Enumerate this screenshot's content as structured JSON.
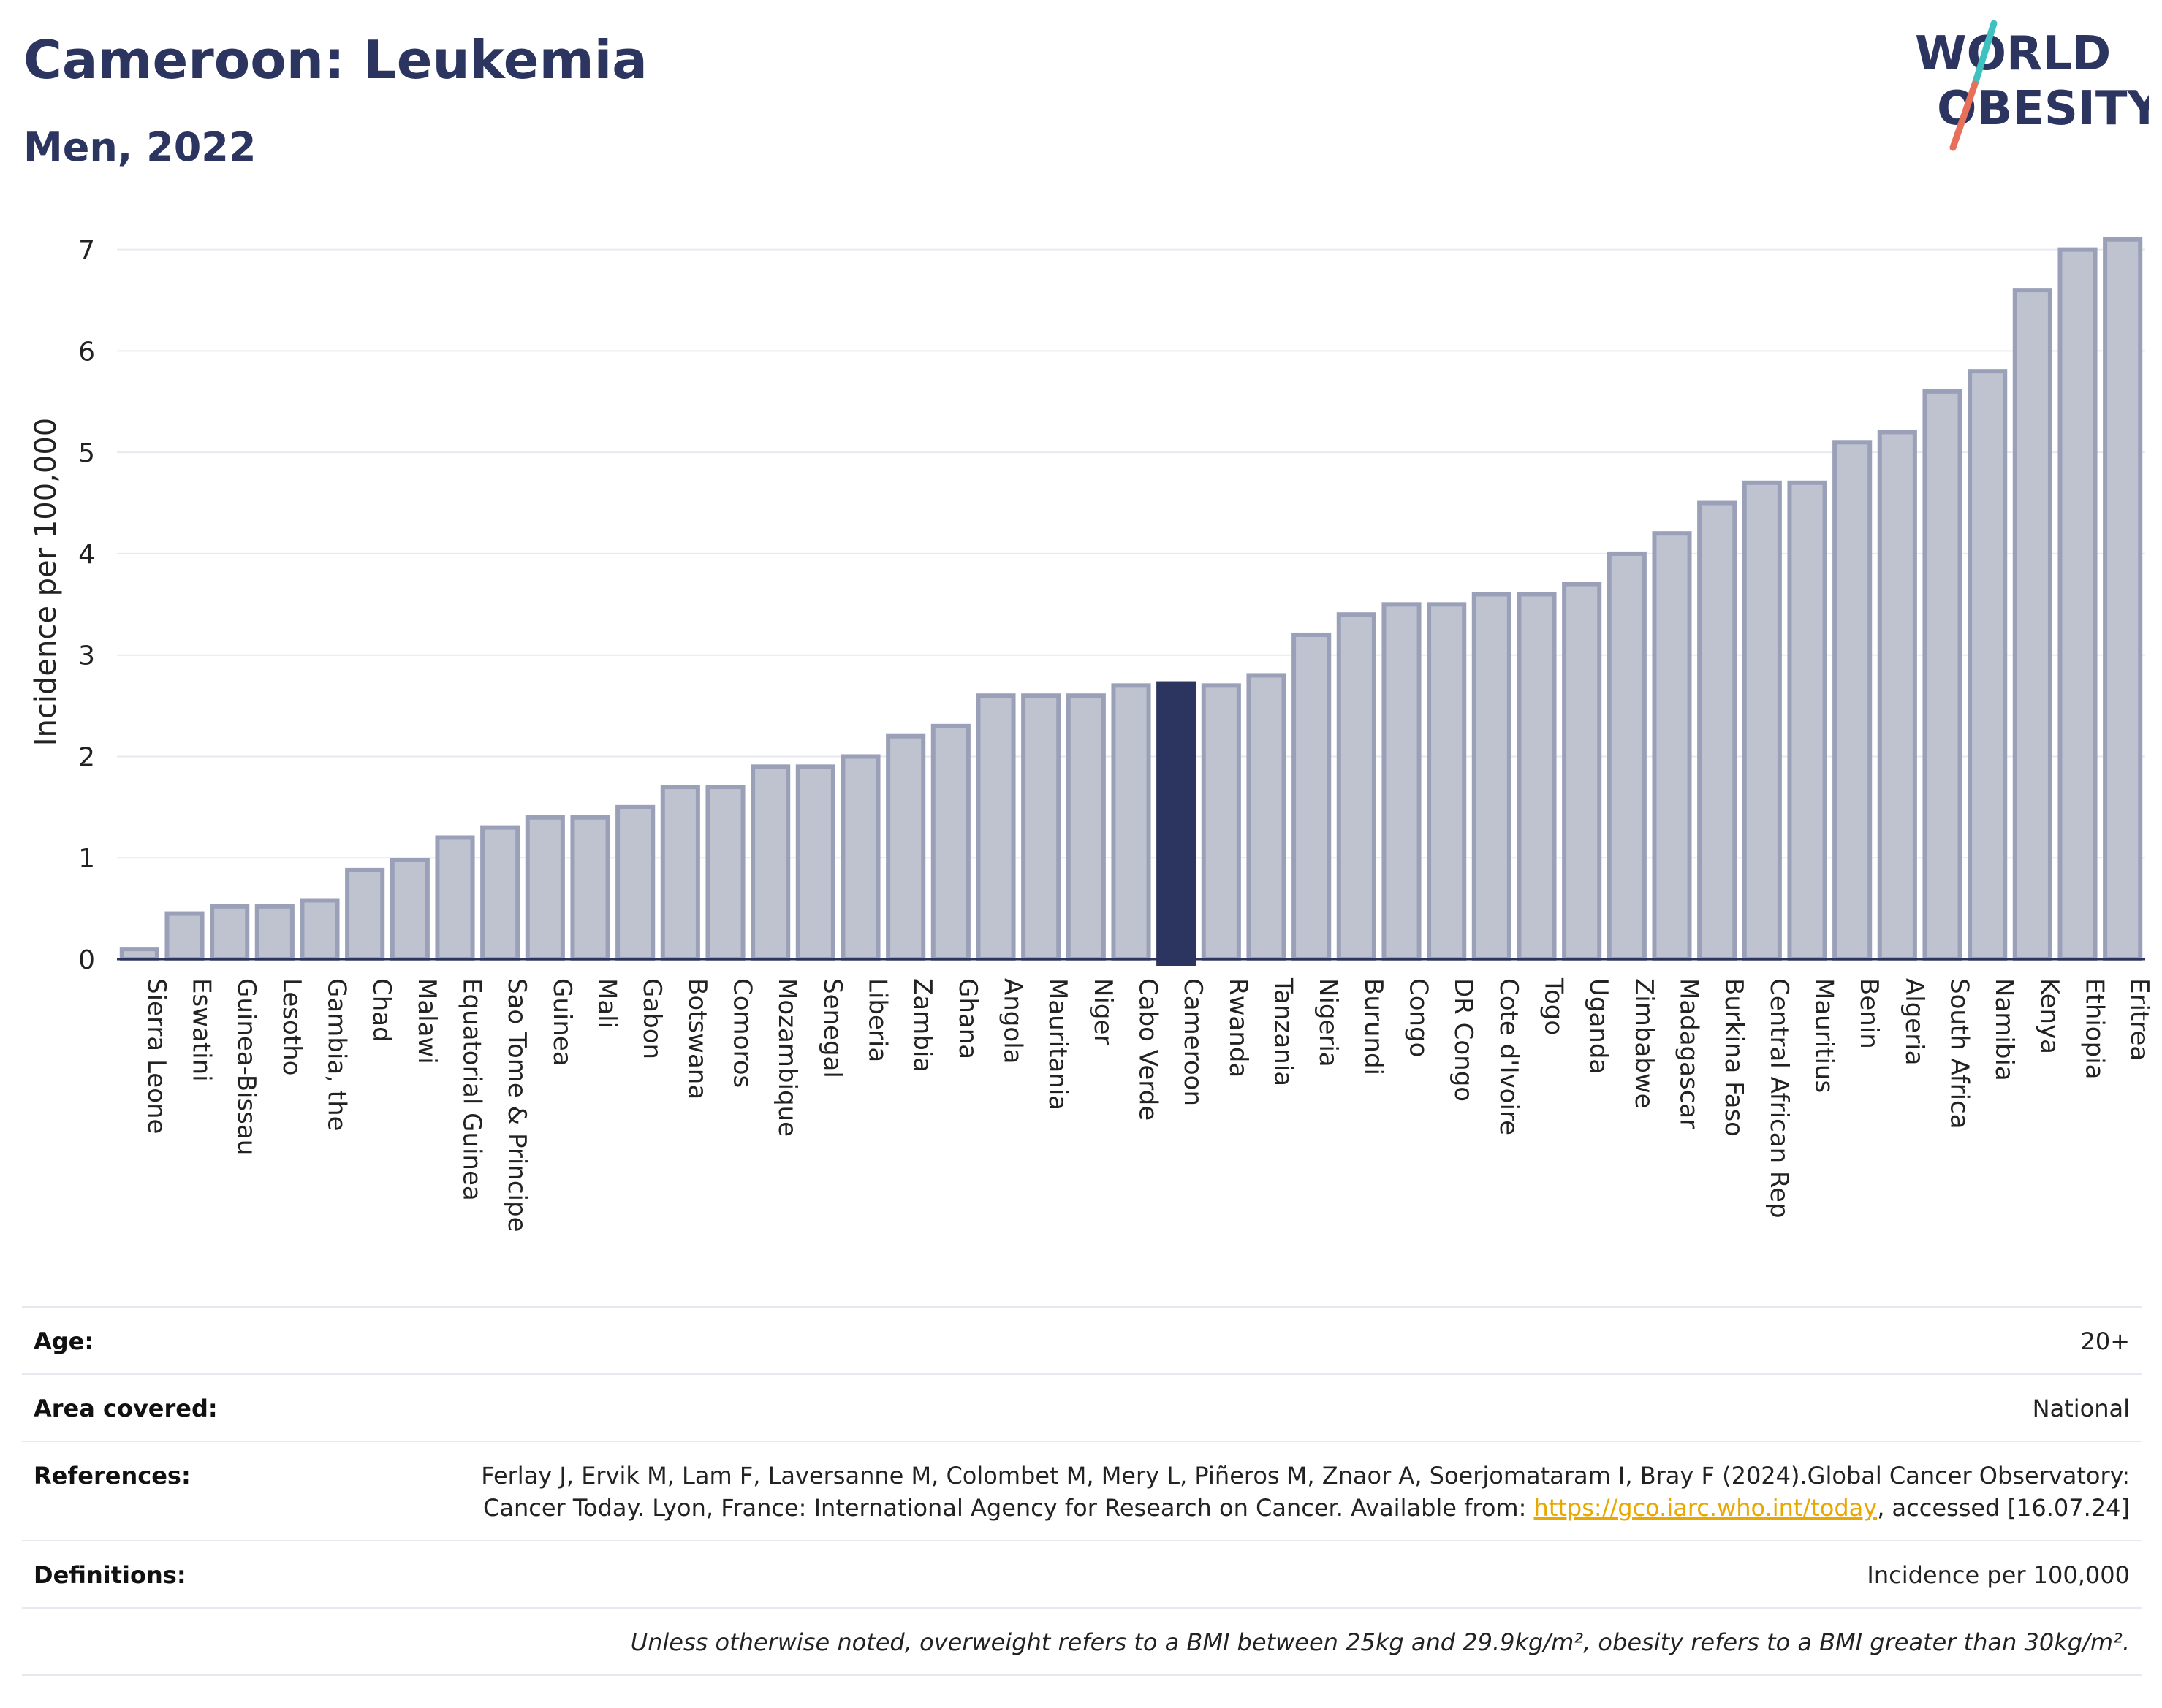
{
  "header": {
    "title": "Cameroon: Leukemia",
    "subtitle": "Men, 2022"
  },
  "logo": {
    "line1": "WORLD",
    "line2": "OBESITY",
    "text_color": "#2c3560",
    "slash_color_top": "#3fc1c0",
    "slash_color_bottom": "#e8705a"
  },
  "chart_data": {
    "type": "bar",
    "ylabel": "Incidence per 100,000",
    "xlabel": "",
    "ylim": [
      0,
      7.3
    ],
    "yticks": [
      0,
      1,
      2,
      3,
      4,
      5,
      6,
      7
    ],
    "grid": true,
    "highlight": "Cameroon",
    "colors": {
      "bar": "#bfc3d0",
      "bar_edge": "#9aa0b8",
      "highlight": "#2c3560",
      "grid": "#e8eaf0",
      "axis": "#2c3560"
    },
    "categories": [
      "Sierra Leone",
      "Eswatini",
      "Guinea-Bissau",
      "Lesotho",
      "Gambia, the",
      "Chad",
      "Malawi",
      "Equatorial Guinea",
      "Sao Tome & Principe",
      "Guinea",
      "Mali",
      "Gabon",
      "Botswana",
      "Comoros",
      "Mozambique",
      "Senegal",
      "Liberia",
      "Zambia",
      "Ghana",
      "Angola",
      "Mauritania",
      "Niger",
      "Cabo Verde",
      "Cameroon",
      "Rwanda",
      "Tanzania",
      "Nigeria",
      "Burundi",
      "Congo",
      "DR Congo",
      "Cote d'Ivoire",
      "Togo",
      "Uganda",
      "Zimbabwe",
      "Madagascar",
      "Burkina Faso",
      "Central African Rep",
      "Mauritius",
      "Benin",
      "Algeria",
      "South Africa",
      "Namibia",
      "Kenya",
      "Ethiopia",
      "Eritrea"
    ],
    "values": [
      0.1,
      0.45,
      0.52,
      0.52,
      0.58,
      0.88,
      0.98,
      1.2,
      1.3,
      1.4,
      1.4,
      1.5,
      1.7,
      1.7,
      1.9,
      1.9,
      2.0,
      2.2,
      2.3,
      2.6,
      2.6,
      2.6,
      2.7,
      2.72,
      2.7,
      2.8,
      3.2,
      3.4,
      3.5,
      3.5,
      3.6,
      3.6,
      3.7,
      4.0,
      4.2,
      4.5,
      4.7,
      4.7,
      5.1,
      5.2,
      5.6,
      5.8,
      6.6,
      7.0,
      7.1
    ]
  },
  "meta": {
    "age": {
      "label": "Age:",
      "value": "20+"
    },
    "area": {
      "label": "Area covered:",
      "value": "National"
    },
    "references": {
      "label": "References:",
      "text_before": "Ferlay J, Ervik M, Lam F, Laversanne M, Colombet M, Mery L, Piñeros M, Znaor A, Soerjomataram I, Bray F (2024).Global Cancer Observatory: Cancer Today. Lyon, France: International Agency for Research on Cancer. Available from: ",
      "link": "https://gco.iarc.who.int/today",
      "text_after": ", accessed [16.07.24]"
    },
    "definitions": {
      "label": "Definitions:",
      "value": "Incidence per 100,000"
    },
    "note": "Unless otherwise noted, overweight refers to a BMI between 25kg and 29.9kg/m², obesity refers to a BMI greater than 30kg/m²."
  }
}
